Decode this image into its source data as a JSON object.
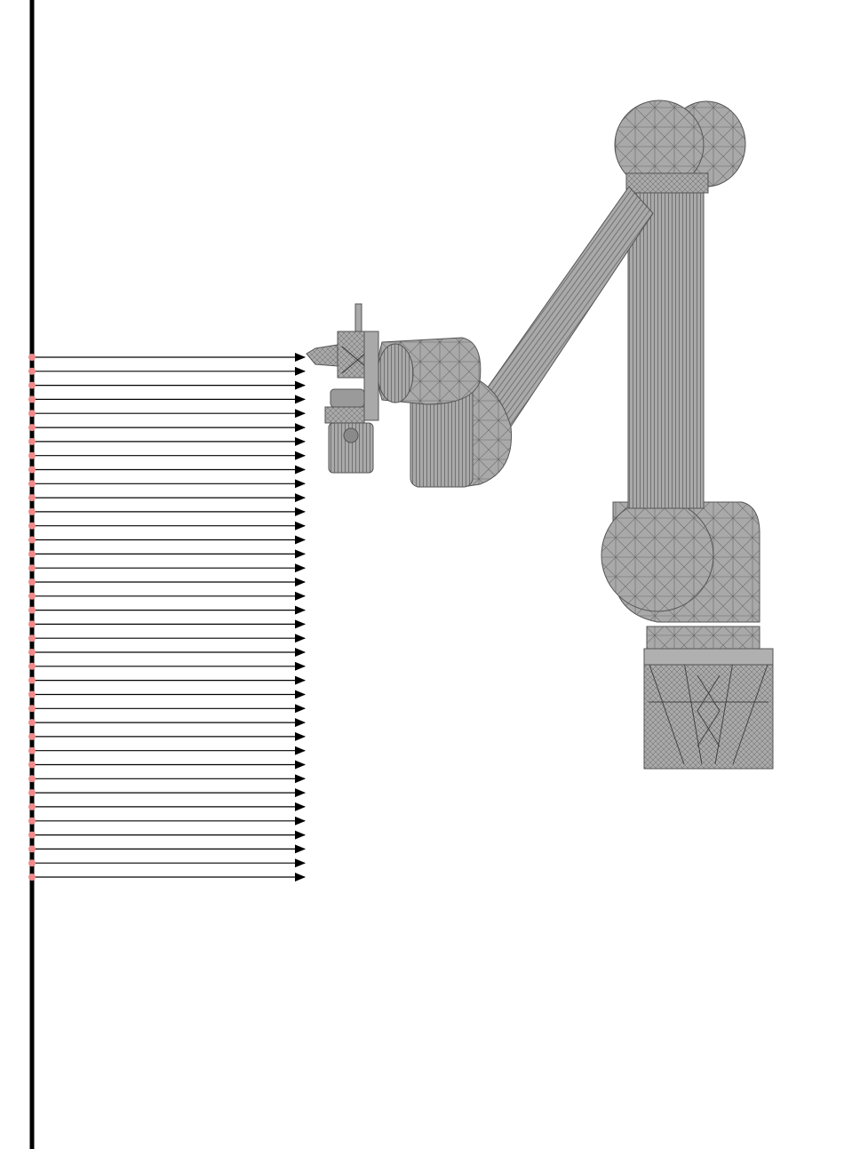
{
  "scene": {
    "background": "#ffffff",
    "wall_color": "#000000",
    "ray_color": "#000000",
    "ray_origin_marker_color": "#f08a8a",
    "robot_fill": "#a9a9a9",
    "robot_mesh_stroke": "#555555",
    "ray_count": 38
  },
  "robot": {
    "icon": "robot-arm-icon",
    "parts": [
      "base",
      "shoulder-joint",
      "upper-arm",
      "elbow-joint",
      "forearm",
      "wrist-joint",
      "wrist-block",
      "end-effector-gripper",
      "tool-camera"
    ]
  }
}
